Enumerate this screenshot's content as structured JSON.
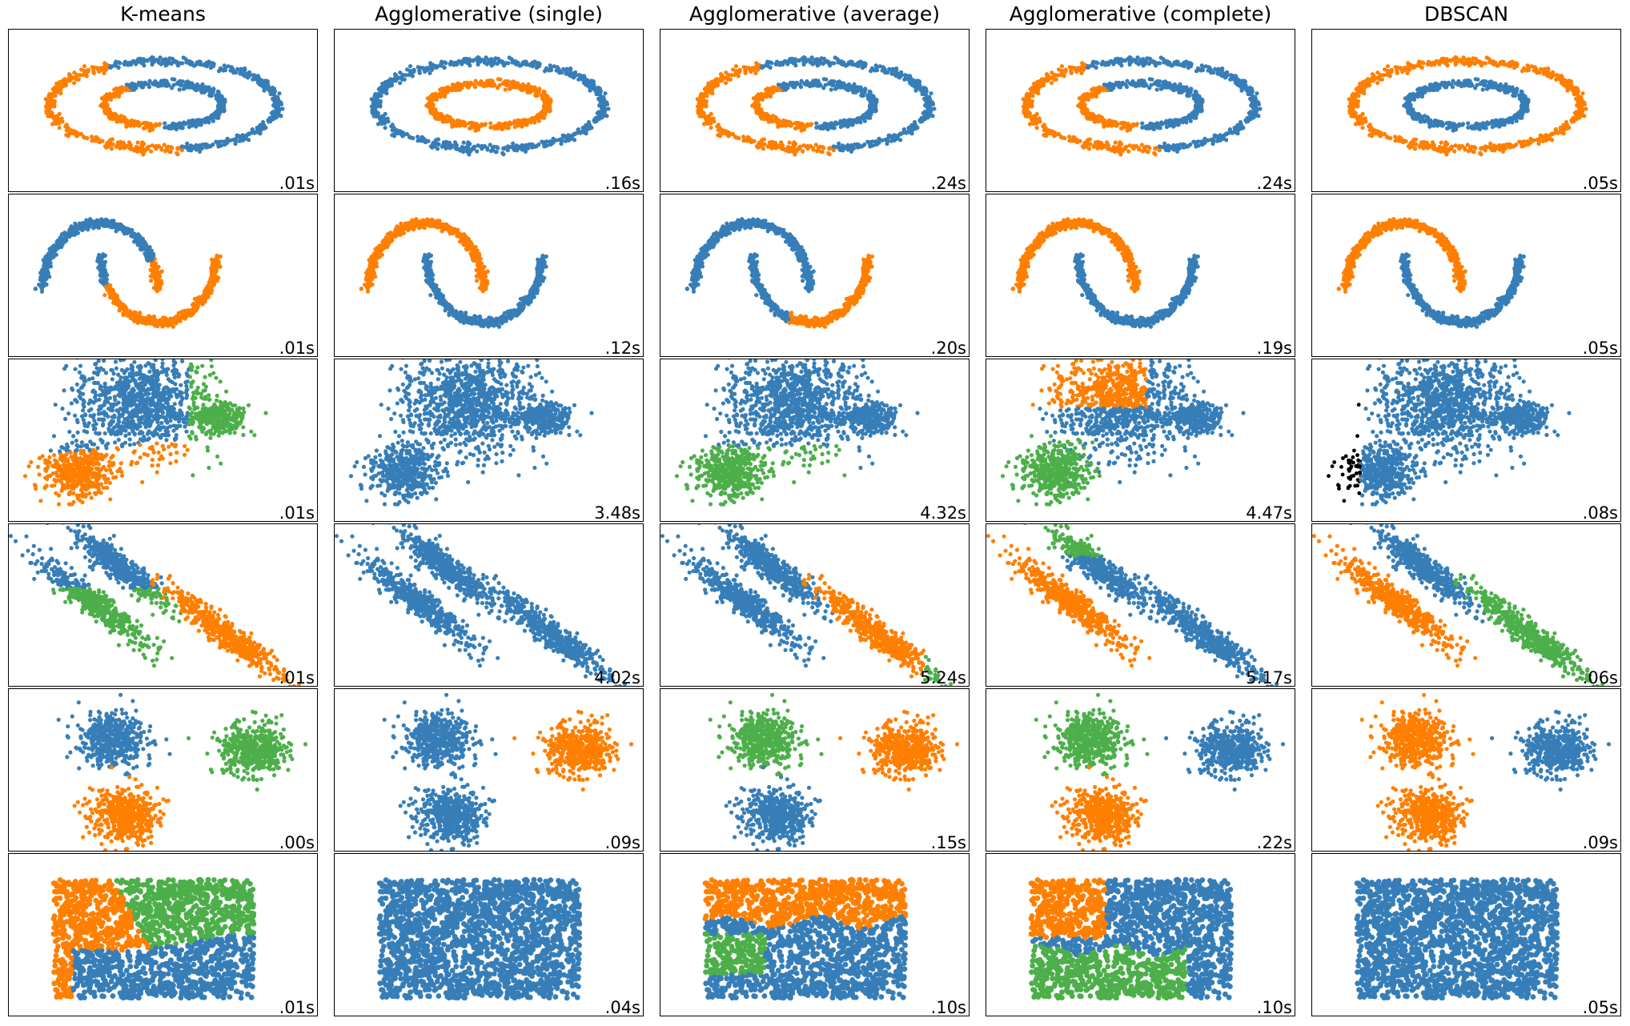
{
  "chart_data": {
    "type": "scatter",
    "columns": [
      "K-means",
      "Agglomerative (single)",
      "Agglomerative (average)",
      "Agglomerative (complete)",
      "DBSCAN"
    ],
    "colors": {
      "c0": "#377eb8",
      "c1": "#ff7f00",
      "c2": "#4daf4a",
      "noise": "#000000"
    },
    "datasets": [
      "noisy_circles",
      "noisy_moons",
      "varied",
      "aniso",
      "blobs",
      "no_structure"
    ],
    "times": [
      [
        ".01s",
        ".16s",
        ".24s",
        ".24s",
        ".05s"
      ],
      [
        ".01s",
        ".12s",
        ".20s",
        ".19s",
        ".05s"
      ],
      [
        ".01s",
        "3.48s",
        "4.32s",
        "4.47s",
        ".08s"
      ],
      [
        ".01s",
        "4.02s",
        "5.24s",
        "5.17s",
        ".06s"
      ],
      [
        ".00s",
        ".09s",
        ".15s",
        ".22s",
        ".09s"
      ],
      [
        ".01s",
        ".04s",
        ".10s",
        ".10s",
        ".05s"
      ]
    ]
  }
}
